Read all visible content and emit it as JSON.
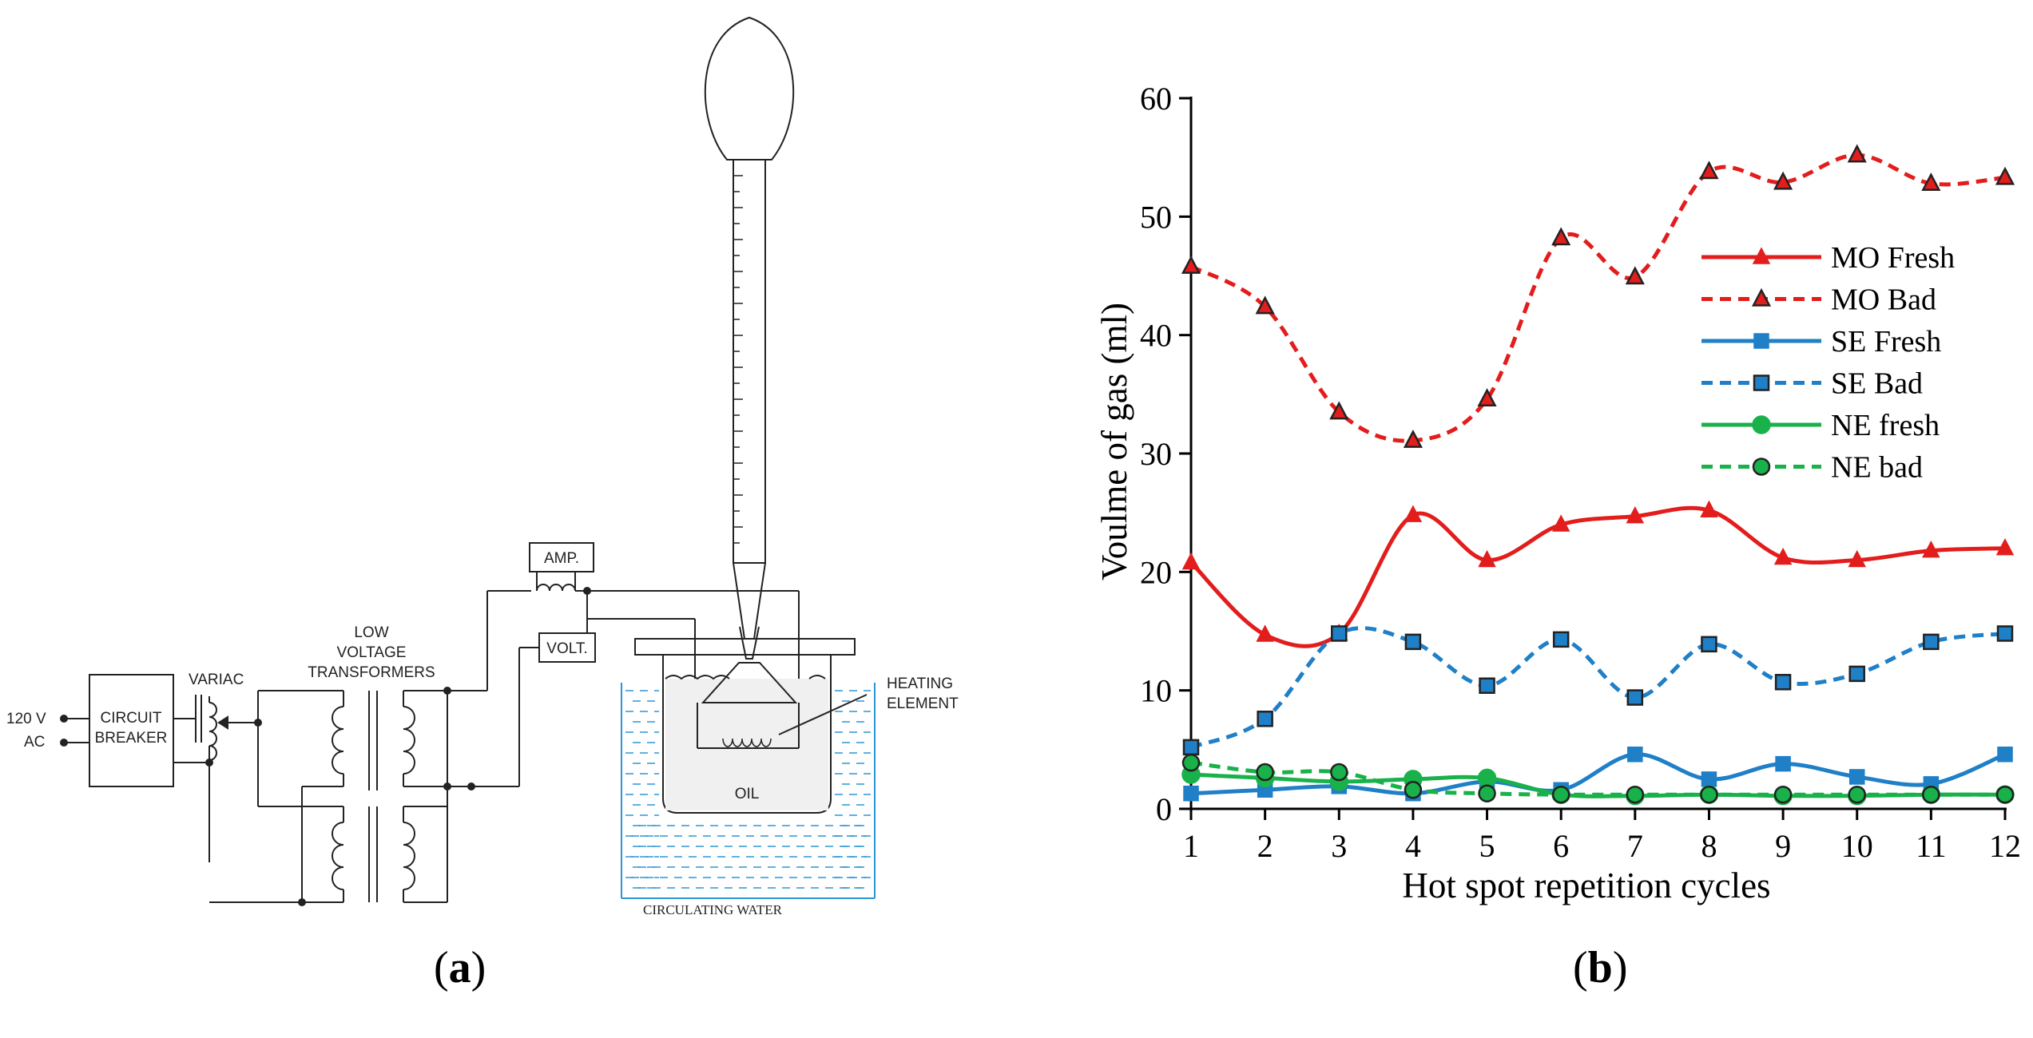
{
  "panel_a": {
    "label_open": "(",
    "label_letter": "a",
    "label_close": ")",
    "diagram_labels": {
      "supply_voltage": "120 V",
      "supply_type": "AC",
      "circuit_breaker_line1": "CIRCUIT",
      "circuit_breaker_line2": "BREAKER",
      "variac": "VARIAC",
      "transformers_line1": "LOW",
      "transformers_line2": "VOLTAGE",
      "transformers_line3": "TRANSFORMERS",
      "ammeter": "AMP.",
      "voltmeter": "VOLT.",
      "heating_line1": "HEATING",
      "heating_line2": "ELEMENT",
      "oil": "OIL",
      "water": "CIRCULATING WATER"
    }
  },
  "panel_b": {
    "label_open": "(",
    "label_letter": "b",
    "label_close": ")"
  },
  "chart_data": {
    "type": "line",
    "title": "",
    "xlabel": "Hot spot repetition cycles",
    "ylabel": "Voulme of gas (ml)",
    "x": [
      1,
      2,
      3,
      4,
      5,
      6,
      7,
      8,
      9,
      10,
      11,
      12
    ],
    "xlim": [
      1,
      12
    ],
    "ylim": [
      0,
      60
    ],
    "yticks": [
      0,
      10,
      20,
      30,
      40,
      50,
      60
    ],
    "legend_position": "right",
    "series": [
      {
        "name": "MO Fresh",
        "color": "#e31c1c",
        "dash": "solid",
        "marker": "triangle",
        "values": [
          20.8,
          14.7,
          14.8,
          24.8,
          21.0,
          24.0,
          24.7,
          25.2,
          21.2,
          21.0,
          21.8,
          22.0
        ]
      },
      {
        "name": "MO Bad",
        "color": "#e31c1c",
        "dash": "dashed",
        "marker": "triangle",
        "values": [
          45.8,
          42.4,
          33.5,
          31.1,
          34.6,
          48.2,
          44.9,
          53.8,
          52.9,
          55.2,
          52.8,
          53.3
        ]
      },
      {
        "name": "SE Fresh",
        "color": "#1f7fc7",
        "dash": "solid",
        "marker": "square",
        "values": [
          1.3,
          1.6,
          1.9,
          1.3,
          2.3,
          1.6,
          4.6,
          2.5,
          3.8,
          2.7,
          2.1,
          4.6
        ]
      },
      {
        "name": "SE Bad",
        "color": "#1f7fc7",
        "dash": "dashed",
        "marker": "square",
        "values": [
          5.2,
          7.6,
          14.8,
          14.1,
          10.4,
          14.3,
          9.4,
          13.9,
          10.7,
          11.4,
          14.1,
          14.8
        ]
      },
      {
        "name": "NE fresh",
        "color": "#19b14a",
        "dash": "solid",
        "marker": "circle",
        "values": [
          2.9,
          2.6,
          2.3,
          2.5,
          2.6,
          1.2,
          1.1,
          1.2,
          1.1,
          1.1,
          1.2,
          1.2
        ]
      },
      {
        "name": "NE bad",
        "color": "#19b14a",
        "dash": "dashed",
        "marker": "circle",
        "values": [
          3.9,
          3.1,
          3.1,
          1.6,
          1.3,
          1.2,
          1.2,
          1.2,
          1.2,
          1.2,
          1.2,
          1.2
        ]
      }
    ]
  }
}
